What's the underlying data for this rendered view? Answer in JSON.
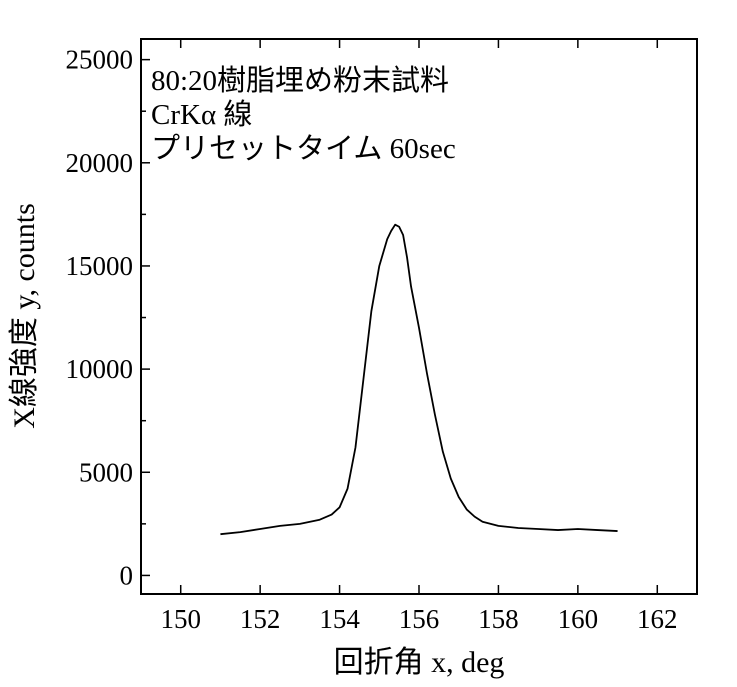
{
  "chart_data": {
    "type": "line",
    "title": "",
    "annotations": [
      "80:20樹脂埋め粉末試料",
      "CrKα 線",
      "プリセットタイム 60sec"
    ],
    "xlabel": "回折角 x, deg",
    "ylabel": "X線強度 y, counts",
    "xlim": [
      149,
      163
    ],
    "ylim": [
      -900,
      26000
    ],
    "xticks": [
      150,
      152,
      154,
      156,
      158,
      160,
      162
    ],
    "yticks": [
      0,
      5000,
      10000,
      15000,
      20000,
      25000
    ],
    "xtick_labels": [
      "150",
      "152",
      "154",
      "156",
      "158",
      "160",
      "162"
    ],
    "ytick_labels": [
      "0",
      "5000",
      "10000",
      "15000",
      "20000",
      "25000"
    ],
    "grid": false,
    "legend": "none",
    "line_color": "#000000",
    "series": [
      {
        "x": [
          151.0,
          151.5,
          152.0,
          152.5,
          153.0,
          153.5,
          153.8,
          154.0,
          154.2,
          154.4,
          154.6,
          154.8,
          155.0,
          155.2,
          155.3,
          155.4,
          155.5,
          155.6,
          155.7,
          155.8,
          156.0,
          156.2,
          156.4,
          156.6,
          156.8,
          157.0,
          157.2,
          157.4,
          157.6,
          158.0,
          158.5,
          159.0,
          159.5,
          160.0,
          160.5,
          161.0
        ],
        "y": [
          2000,
          2100,
          2250,
          2400,
          2500,
          2700,
          2950,
          3300,
          4200,
          6200,
          9500,
          12800,
          15000,
          16300,
          16700,
          17000,
          16900,
          16500,
          15400,
          14000,
          12000,
          9800,
          7800,
          6000,
          4700,
          3800,
          3200,
          2850,
          2600,
          2400,
          2300,
          2250,
          2200,
          2250,
          2200,
          2150
        ]
      }
    ]
  }
}
